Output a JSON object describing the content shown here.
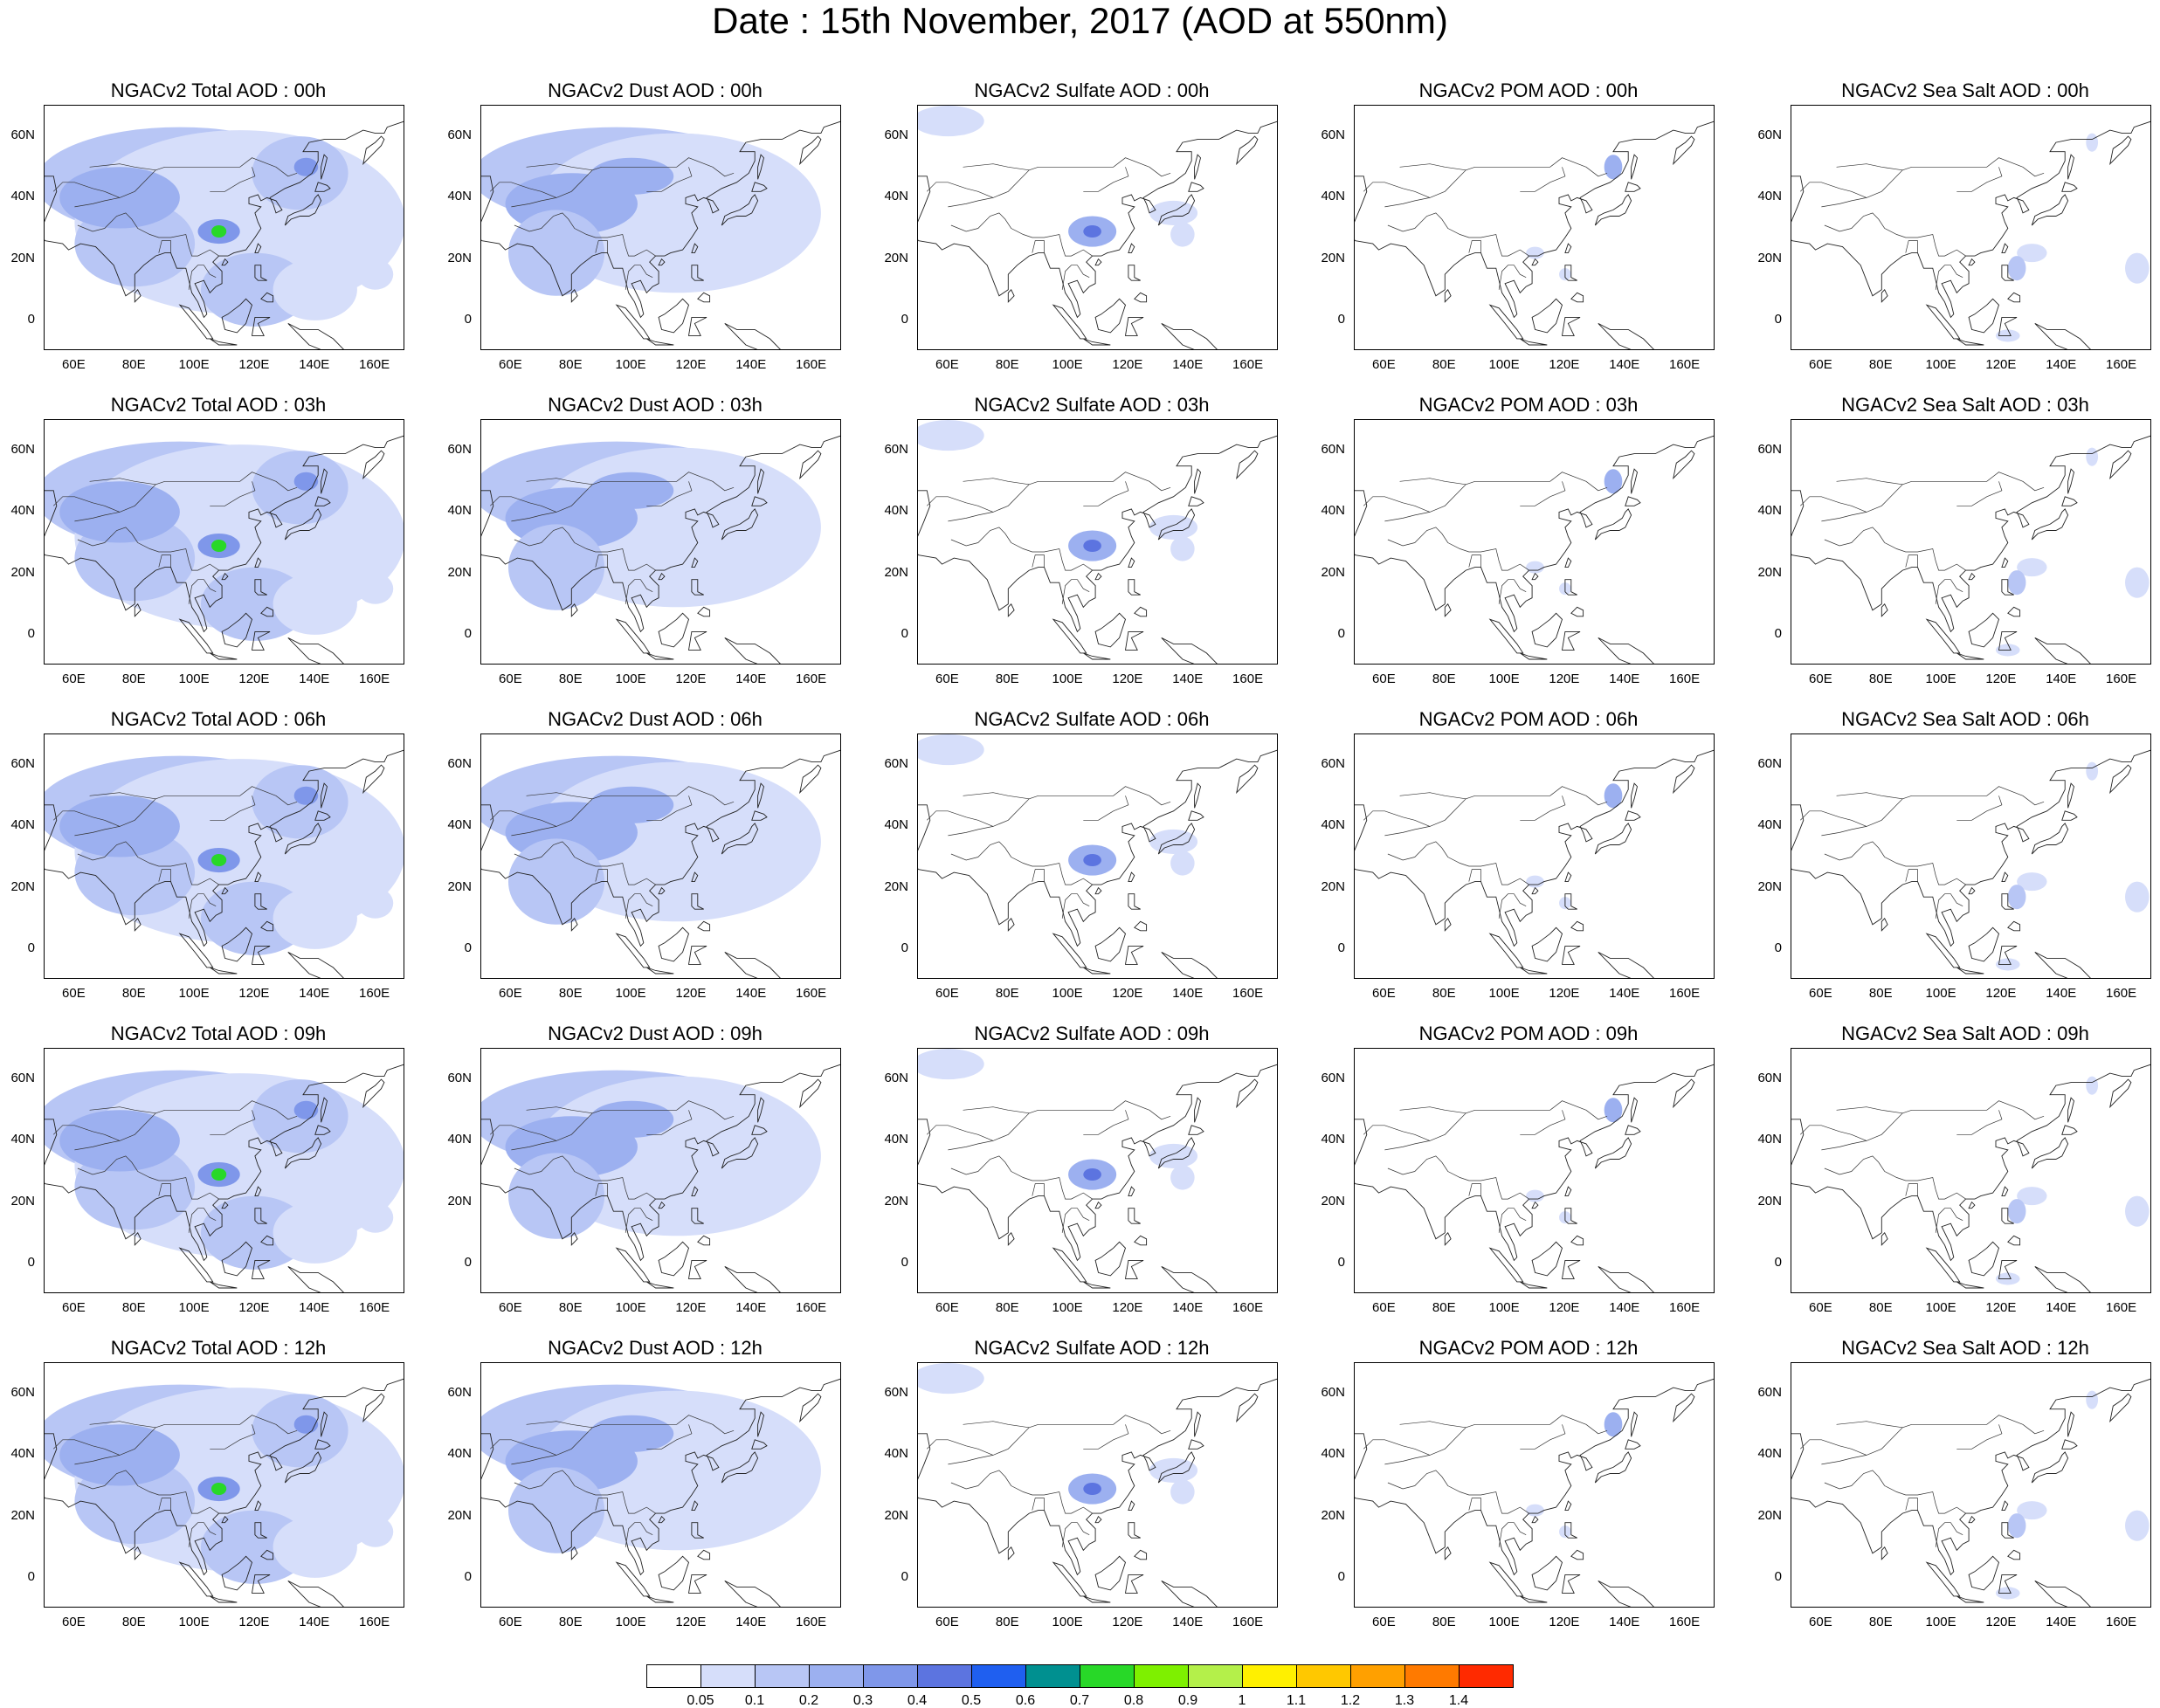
{
  "title": "Date : 15th November, 2017 (AOD at 550nm)",
  "y_tick_labels": [
    "60N",
    "40N",
    "20N",
    "0"
  ],
  "x_tick_labels": [
    "60E",
    "80E",
    "100E",
    "120E",
    "140E",
    "160E"
  ],
  "rows": [
    {
      "panels": [
        {
          "title": "NGACv2 Total AOD : 00h",
          "species": "total"
        },
        {
          "title": "NGACv2 Dust AOD : 00h",
          "species": "dust"
        },
        {
          "title": "NGACv2 Sulfate AOD : 00h",
          "species": "sulfate"
        },
        {
          "title": "NGACv2 POM AOD : 00h",
          "species": "pom"
        },
        {
          "title": "NGACv2 Sea Salt AOD : 00h",
          "species": "seasalt"
        }
      ]
    },
    {
      "panels": [
        {
          "title": "NGACv2 Total AOD : 03h",
          "species": "total"
        },
        {
          "title": "NGACv2 Dust AOD : 03h",
          "species": "dust"
        },
        {
          "title": "NGACv2 Sulfate AOD : 03h",
          "species": "sulfate"
        },
        {
          "title": "NGACv2 POM AOD : 03h",
          "species": "pom"
        },
        {
          "title": "NGACv2 Sea Salt AOD : 03h",
          "species": "seasalt"
        }
      ]
    },
    {
      "panels": [
        {
          "title": "NGACv2 Total AOD : 06h",
          "species": "total"
        },
        {
          "title": "NGACv2 Dust AOD : 06h",
          "species": "dust"
        },
        {
          "title": "NGACv2 Sulfate AOD : 06h",
          "species": "sulfate"
        },
        {
          "title": "NGACv2 POM AOD : 06h",
          "species": "pom"
        },
        {
          "title": "NGACv2 Sea Salt AOD : 06h",
          "species": "seasalt"
        }
      ]
    },
    {
      "panels": [
        {
          "title": "NGACv2 Total AOD : 09h",
          "species": "total"
        },
        {
          "title": "NGACv2 Dust AOD : 09h",
          "species": "dust"
        },
        {
          "title": "NGACv2 Sulfate AOD : 09h",
          "species": "sulfate"
        },
        {
          "title": "NGACv2 POM AOD : 09h",
          "species": "pom"
        },
        {
          "title": "NGACv2 Sea Salt  AOD : 09h",
          "species": "seasalt"
        }
      ]
    },
    {
      "panels": [
        {
          "title": "NGACv2 Total AOD  : 12h",
          "species": "total"
        },
        {
          "title": "NGACv2 Dust AOD : 12h",
          "species": "dust"
        },
        {
          "title": "NGACv2 Sulfate AOD : 12h",
          "species": "sulfate"
        },
        {
          "title": "NGACv2 POM  AOD : 12h",
          "species": "pom"
        },
        {
          "title": "NGACv2 Sea Salt  AOD : 12h",
          "species": "seasalt"
        }
      ]
    }
  ],
  "colorbar": {
    "labels": [
      "0.05",
      "0.1",
      "0.2",
      "0.3",
      "0.4",
      "0.5",
      "0.6",
      "0.7",
      "0.8",
      "0.9",
      "1",
      "1.1",
      "1.2",
      "1.3",
      "1.4"
    ],
    "colors": [
      "#ffffff",
      "#d6defa",
      "#b8c6f5",
      "#9cb0f0",
      "#7f97ea",
      "#5c74e0",
      "#1f5ff0",
      "#009090",
      "#28d828",
      "#7ef000",
      "#b4f04a",
      "#fff000",
      "#ffc800",
      "#ffa000",
      "#ff7a00",
      "#ff2a00"
    ]
  },
  "chart_data": {
    "type": "heatmap",
    "title": "Date : 15th November, 2017 (AOD at 550nm)",
    "variable": "AOD at 550nm",
    "times": [
      "00h",
      "03h",
      "06h",
      "09h",
      "12h"
    ],
    "species": [
      "Total",
      "Dust",
      "Sulfate",
      "POM",
      "Sea Salt"
    ],
    "x_range": [
      "50E",
      "170E"
    ],
    "y_range": [
      "10S",
      "70N"
    ],
    "levels": [
      0.05,
      0.1,
      0.2,
      0.3,
      0.4,
      0.5,
      0.6,
      0.7,
      0.8,
      0.9,
      1,
      1.1,
      1.2,
      1.3,
      1.4
    ]
  }
}
